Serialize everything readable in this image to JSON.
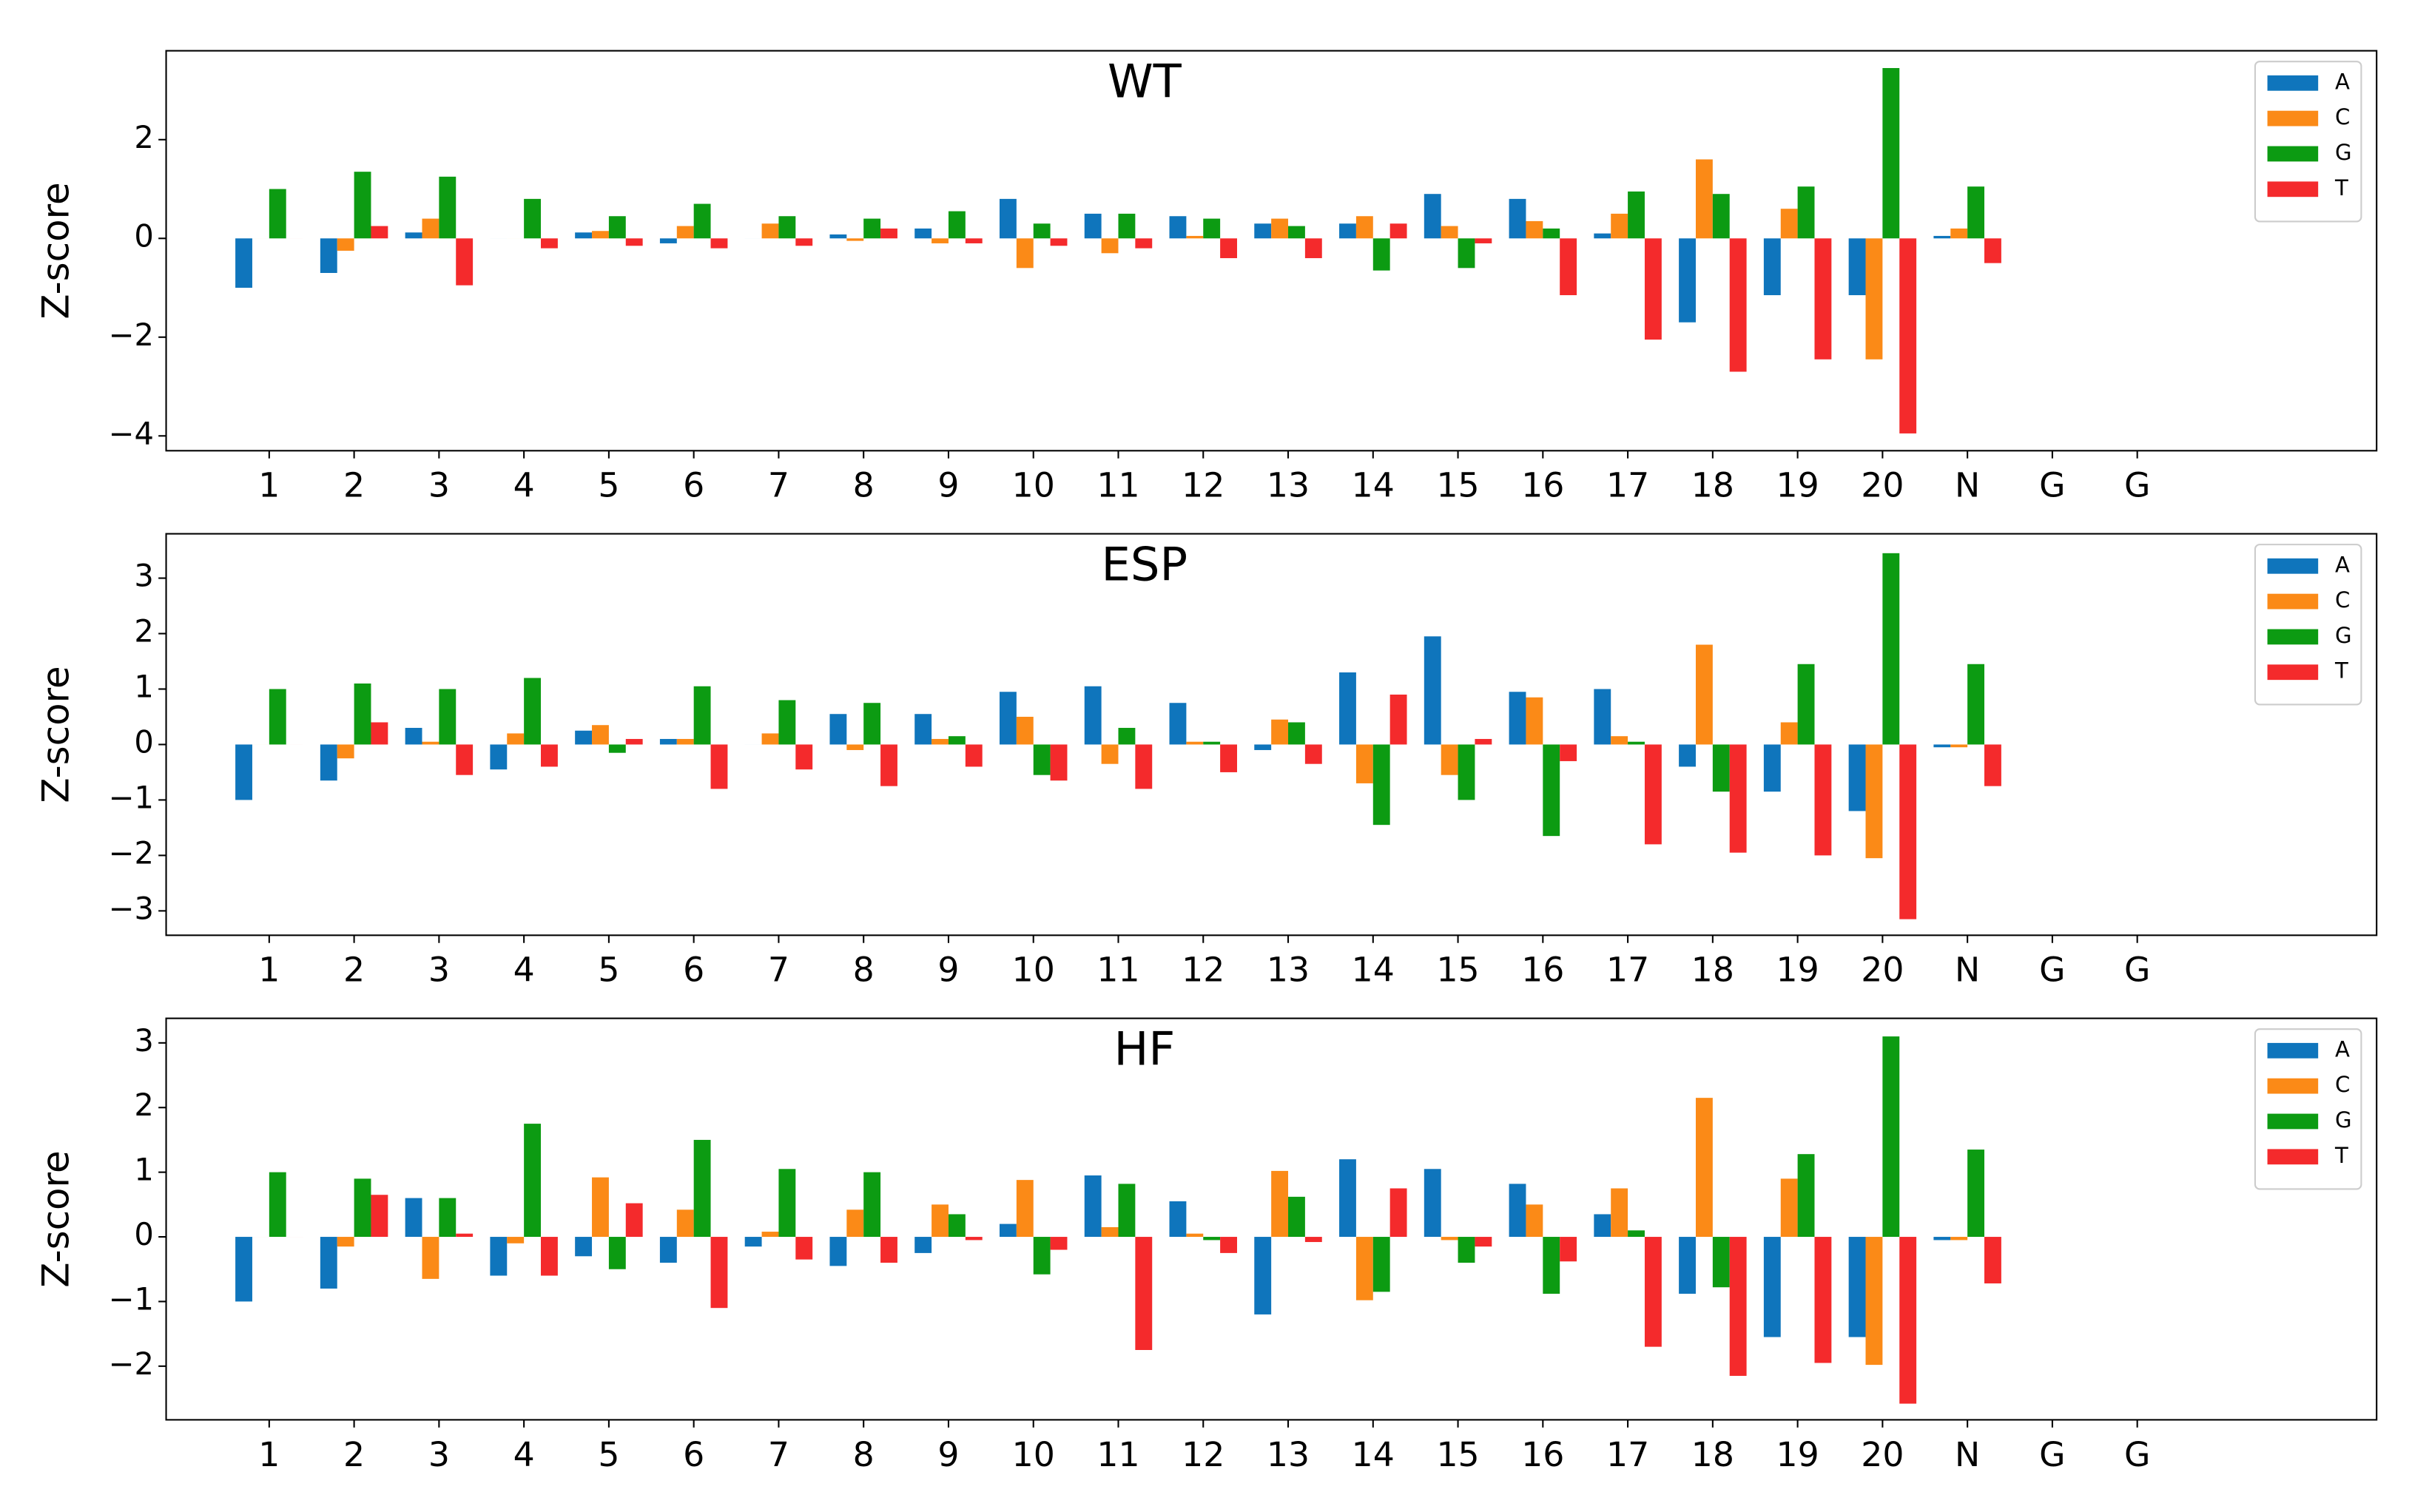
{
  "chart_data": [
    {
      "type": "bar",
      "title": "WT",
      "ylabel": "Z-score",
      "categories": [
        "1",
        "2",
        "3",
        "4",
        "5",
        "6",
        "7",
        "8",
        "9",
        "10",
        "11",
        "12",
        "13",
        "14",
        "15",
        "16",
        "17",
        "18",
        "19",
        "20",
        "N",
        "G",
        "G"
      ],
      "series": [
        {
          "name": "A",
          "color": "#0f75bc",
          "values": [
            -1.0,
            -0.7,
            0.12,
            0,
            0.12,
            -0.1,
            0,
            0.08,
            0.2,
            0.8,
            0.5,
            0.45,
            0.3,
            0.3,
            0.9,
            0.8,
            0.1,
            -1.7,
            -1.15,
            -1.15,
            0.05,
            null,
            null
          ]
        },
        {
          "name": "C",
          "color": "#fb8a17",
          "values": [
            0,
            -0.25,
            0.4,
            0,
            0.15,
            0.25,
            0.3,
            -0.05,
            -0.1,
            -0.6,
            -0.3,
            0.05,
            0.4,
            0.45,
            0.25,
            0.35,
            0.5,
            1.6,
            0.6,
            -2.45,
            0.2,
            null,
            null
          ]
        },
        {
          "name": "G",
          "color": "#0c9b12",
          "values": [
            1.0,
            1.35,
            1.25,
            0.8,
            0.45,
            0.7,
            0.45,
            0.4,
            0.55,
            0.3,
            0.5,
            0.4,
            0.25,
            -0.65,
            -0.6,
            0.2,
            0.95,
            0.9,
            1.05,
            3.45,
            1.05,
            null,
            null
          ]
        },
        {
          "name": "T",
          "color": "#f42a2c",
          "values": [
            0,
            0.25,
            -0.95,
            -0.2,
            -0.15,
            -0.2,
            -0.15,
            0.2,
            -0.1,
            -0.15,
            -0.2,
            -0.4,
            -0.4,
            0.3,
            -0.1,
            -1.15,
            -2.05,
            -2.7,
            -2.45,
            -3.95,
            -0.5,
            null,
            null
          ]
        }
      ],
      "ylim": [
        -4.3,
        3.8
      ],
      "yticks": [
        {
          "value": -4,
          "label": "−4"
        },
        {
          "value": -2,
          "label": "−2"
        },
        0,
        2
      ],
      "legend": "upper right"
    },
    {
      "type": "bar",
      "title": "ESP",
      "ylabel": "Z-score",
      "categories": [
        "1",
        "2",
        "3",
        "4",
        "5",
        "6",
        "7",
        "8",
        "9",
        "10",
        "11",
        "12",
        "13",
        "14",
        "15",
        "16",
        "17",
        "18",
        "19",
        "20",
        "N",
        "G",
        "G"
      ],
      "series": [
        {
          "name": "A",
          "color": "#0f75bc",
          "values": [
            -1.0,
            -0.65,
            0.3,
            -0.45,
            0.25,
            0.1,
            0,
            0.55,
            0.55,
            0.95,
            1.05,
            0.75,
            -0.1,
            1.3,
            1.95,
            0.95,
            1.0,
            -0.4,
            -0.85,
            -1.2,
            -0.05,
            null,
            null
          ]
        },
        {
          "name": "C",
          "color": "#fb8a17",
          "values": [
            0,
            -0.25,
            0.05,
            0.2,
            0.35,
            0.1,
            0.2,
            -0.1,
            0.1,
            0.5,
            -0.35,
            0.05,
            0.45,
            -0.7,
            -0.55,
            0.85,
            0.15,
            1.8,
            0.4,
            -2.05,
            -0.05,
            null,
            null
          ]
        },
        {
          "name": "G",
          "color": "#0c9b12",
          "values": [
            1.0,
            1.1,
            1.0,
            1.2,
            -0.15,
            1.05,
            0.8,
            0.75,
            0.15,
            -0.55,
            0.3,
            0.05,
            0.4,
            -1.45,
            -1.0,
            -1.65,
            0.05,
            -0.85,
            1.45,
            3.45,
            1.45,
            null,
            null
          ]
        },
        {
          "name": "T",
          "color": "#f42a2c",
          "values": [
            0,
            0.4,
            -0.55,
            -0.4,
            0.1,
            -0.8,
            -0.45,
            -0.75,
            -0.4,
            -0.65,
            -0.8,
            -0.5,
            -0.35,
            0.9,
            0.1,
            -0.3,
            -1.8,
            -1.95,
            -2.0,
            -3.15,
            -0.75,
            null,
            null
          ]
        }
      ],
      "ylim": [
        -3.44,
        3.8
      ],
      "yticks": [
        {
          "value": -3,
          "label": "−3"
        },
        {
          "value": -2,
          "label": "−2"
        },
        {
          "value": -1,
          "label": "−1"
        },
        0,
        1,
        2,
        3
      ],
      "legend": "upper right"
    },
    {
      "type": "bar",
      "title": "HF",
      "ylabel": "Z-score",
      "categories": [
        "1",
        "2",
        "3",
        "4",
        "5",
        "6",
        "7",
        "8",
        "9",
        "10",
        "11",
        "12",
        "13",
        "14",
        "15",
        "16",
        "17",
        "18",
        "19",
        "20",
        "N",
        "G",
        "G"
      ],
      "series": [
        {
          "name": "A",
          "color": "#0f75bc",
          "values": [
            -1.0,
            -0.8,
            0.6,
            -0.6,
            -0.3,
            -0.4,
            -0.15,
            -0.45,
            -0.25,
            0.2,
            0.95,
            0.55,
            -1.2,
            1.2,
            1.05,
            0.82,
            0.35,
            -0.88,
            -1.55,
            -1.55,
            -0.05,
            null,
            null
          ]
        },
        {
          "name": "C",
          "color": "#fb8a17",
          "values": [
            0,
            -0.15,
            -0.65,
            -0.1,
            0.92,
            0.42,
            0.08,
            0.42,
            0.5,
            0.88,
            0.15,
            0.05,
            1.02,
            -0.98,
            -0.05,
            0.5,
            0.75,
            2.15,
            0.9,
            -1.98,
            -0.05,
            null,
            null
          ]
        },
        {
          "name": "G",
          "color": "#0c9b12",
          "values": [
            1.0,
            0.9,
            0.6,
            1.75,
            -0.5,
            1.5,
            1.05,
            1.0,
            0.35,
            -0.58,
            0.82,
            -0.05,
            0.62,
            -0.85,
            -0.4,
            -0.88,
            0.1,
            -0.78,
            1.28,
            3.1,
            1.35,
            null,
            null
          ]
        },
        {
          "name": "T",
          "color": "#f42a2c",
          "values": [
            0,
            0.65,
            0.05,
            -0.6,
            0.52,
            -1.1,
            -0.35,
            -0.4,
            -0.05,
            -0.2,
            -1.75,
            -0.25,
            -0.08,
            0.75,
            -0.15,
            -0.38,
            -1.7,
            -2.15,
            -1.95,
            -2.58,
            -0.72,
            null,
            null
          ]
        }
      ],
      "ylim": [
        -2.83,
        3.38
      ],
      "yticks": [
        {
          "value": -2,
          "label": "−2"
        },
        {
          "value": -1,
          "label": "−1"
        },
        0,
        1,
        2,
        3
      ],
      "legend": "upper right"
    }
  ]
}
